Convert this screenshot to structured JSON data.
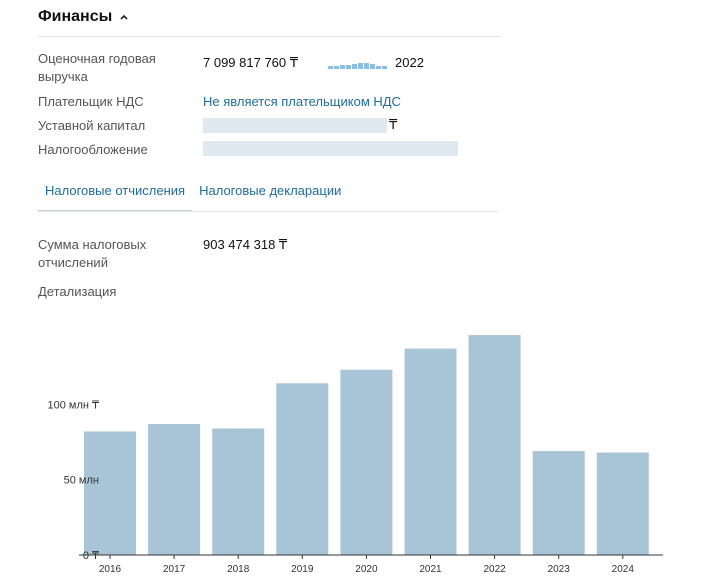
{
  "section": {
    "title": "Финансы"
  },
  "revenue": {
    "label": "Оценочная годовая выручка",
    "value": "7 099 817 760 ₸",
    "year": "2022",
    "trend": [
      3,
      3,
      4,
      4,
      5,
      6,
      6,
      5,
      3,
      3
    ]
  },
  "vat": {
    "label": "Плательщик НДС",
    "value": "Не является плательщиком НДС"
  },
  "capital": {
    "label": "Уставной капитал",
    "currency": "₸"
  },
  "taxation": {
    "label": "Налогообложение"
  },
  "tabs": [
    {
      "label": "Налоговые отчисления",
      "active": true
    },
    {
      "label": "Налоговые декларации",
      "active": false
    }
  ],
  "tax_sum": {
    "label": "Сумма налоговых отчислений",
    "value": "903 474 318 ₸"
  },
  "details": {
    "label": "Детализация"
  },
  "colors": {
    "bar": "#a8c4d6",
    "link": "#1f6d99",
    "axis": "#333333"
  },
  "chart_data": {
    "type": "bar",
    "categories": [
      "2016",
      "2017",
      "2018",
      "2019",
      "2020",
      "2021",
      "2022",
      "2023",
      "2024"
    ],
    "values": [
      82,
      87,
      84,
      114,
      123,
      137,
      146,
      69,
      68
    ],
    "ytick_labels": [
      "0 ₸",
      "50 млн",
      "100 млн ₸"
    ],
    "ytick_values": [
      0,
      50,
      100
    ],
    "ylim": [
      0,
      156
    ],
    "grid": false,
    "legend": "none"
  }
}
